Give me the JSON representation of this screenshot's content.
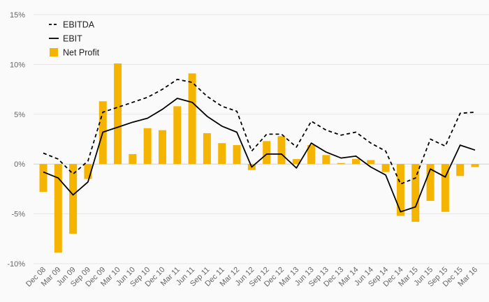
{
  "chart_data": {
    "type": "bar",
    "categories": [
      "Dec 08",
      "Mar 09",
      "Jun 09",
      "Sep 09",
      "Dec 09",
      "Mar 10",
      "Jun 10",
      "Sep 10",
      "Dec 10",
      "Mar 11",
      "Jun 11",
      "Sep 11",
      "Dec 11",
      "Mar 12",
      "Jun 12",
      "Sep 12",
      "Dec 12",
      "Mar 13",
      "Jun 13",
      "Sep 13",
      "Dec 13",
      "Mar 14",
      "Jun 14",
      "Sep 14",
      "Dec 14",
      "Mar 15",
      "Jun 15",
      "Sep 15",
      "Dec 15",
      "Mar 16"
    ],
    "y_ticks": [
      "15%",
      "10%",
      "5%",
      "0%",
      "-5%",
      "-10%"
    ],
    "ylim": [
      -10,
      15
    ],
    "grid": true,
    "legend_position": "top-left",
    "series": [
      {
        "name": "EBITDA",
        "kind": "line",
        "style": "dashed",
        "color": "#000000",
        "values": [
          1.1,
          0.5,
          -1.0,
          0.3,
          5.2,
          5.7,
          6.2,
          6.7,
          7.5,
          8.5,
          8.2,
          6.8,
          5.8,
          5.3,
          1.3,
          3.0,
          3.0,
          1.7,
          4.3,
          3.4,
          2.9,
          3.2,
          2.1,
          1.3,
          -2.0,
          -1.4,
          2.5,
          1.8,
          5.1,
          5.2
        ]
      },
      {
        "name": "EBIT",
        "kind": "line",
        "style": "solid",
        "color": "#000000",
        "values": [
          -0.8,
          -1.4,
          -3.1,
          -1.8,
          3.2,
          3.7,
          4.2,
          4.6,
          5.5,
          6.6,
          6.2,
          4.8,
          3.8,
          3.2,
          -0.3,
          1.0,
          1.0,
          -0.4,
          2.1,
          1.2,
          0.6,
          0.8,
          -0.3,
          -1.1,
          -4.8,
          -4.3,
          -0.5,
          -1.3,
          1.9,
          1.4
        ]
      },
      {
        "name": "Net Profit",
        "kind": "bar",
        "color": "#f5b400",
        "values": [
          -2.8,
          -8.9,
          -7.0,
          -1.5,
          6.3,
          10.1,
          1.0,
          3.6,
          3.4,
          5.8,
          9.1,
          3.1,
          2.1,
          1.9,
          -0.6,
          2.3,
          2.8,
          0.5,
          1.9,
          0.9,
          0.1,
          0.5,
          0.4,
          -0.8,
          -5.2,
          -5.8,
          -3.7,
          -4.8,
          -1.2,
          -0.3
        ]
      }
    ]
  }
}
